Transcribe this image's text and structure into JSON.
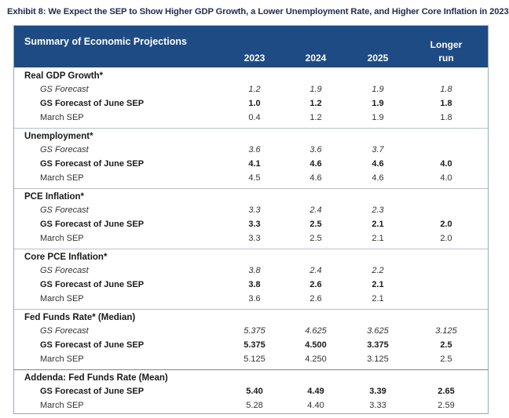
{
  "exhibit_title": "Exhibit 8: We Expect the SEP to Show Higher GDP Growth, a Lower Unemployment Rate, and Higher Core Inflation in 2023",
  "table": {
    "title": "Summary of Economic Projections",
    "columns": [
      "2023",
      "2024",
      "2025"
    ],
    "longer_run_label": [
      "Longer",
      "run"
    ],
    "sections": [
      {
        "name": "Real GDP Growth*",
        "rows": [
          {
            "label": "GS Forecast",
            "style": "italic",
            "values": [
              "1.2",
              "1.9",
              "1.9",
              "1.8"
            ]
          },
          {
            "label": "GS Forecast of June SEP",
            "style": "bold",
            "values": [
              "1.0",
              "1.2",
              "1.9",
              "1.8"
            ]
          },
          {
            "label": "March SEP",
            "style": "regular",
            "values": [
              "0.4",
              "1.2",
              "1.9",
              "1.8"
            ]
          }
        ]
      },
      {
        "name": "Unemployment*",
        "rows": [
          {
            "label": "GS Forecast",
            "style": "italic",
            "values": [
              "3.6",
              "3.6",
              "3.7",
              ""
            ]
          },
          {
            "label": "GS Forecast of June SEP",
            "style": "bold",
            "values": [
              "4.1",
              "4.6",
              "4.6",
              "4.0"
            ]
          },
          {
            "label": "March SEP",
            "style": "regular",
            "values": [
              "4.5",
              "4.6",
              "4.6",
              "4.0"
            ]
          }
        ]
      },
      {
        "name": "PCE Inflation*",
        "rows": [
          {
            "label": "GS Forecast",
            "style": "italic",
            "values": [
              "3.3",
              "2.4",
              "2.3",
              ""
            ]
          },
          {
            "label": "GS Forecast of June SEP",
            "style": "bold",
            "values": [
              "3.3",
              "2.5",
              "2.1",
              "2.0"
            ]
          },
          {
            "label": "March SEP",
            "style": "regular",
            "values": [
              "3.3",
              "2.5",
              "2.1",
              "2.0"
            ]
          }
        ]
      },
      {
        "name": "Core PCE Inflation*",
        "rows": [
          {
            "label": "GS Forecast",
            "style": "italic",
            "values": [
              "3.8",
              "2.4",
              "2.2",
              ""
            ]
          },
          {
            "label": "GS Forecast of June SEP",
            "style": "bold",
            "values": [
              "3.8",
              "2.6",
              "2.1",
              ""
            ]
          },
          {
            "label": "March SEP",
            "style": "regular",
            "values": [
              "3.6",
              "2.6",
              "2.1",
              ""
            ]
          }
        ]
      },
      {
        "name": "Fed Funds Rate* (Median)",
        "rows": [
          {
            "label": "GS Forecast",
            "style": "italic",
            "values": [
              "5.375",
              "4.625",
              "3.625",
              "3.125"
            ]
          },
          {
            "label": "GS Forecast of June SEP",
            "style": "bold",
            "values": [
              "5.375",
              "4.500",
              "3.375",
              "2.5"
            ]
          },
          {
            "label": "March SEP",
            "style": "regular",
            "values": [
              "5.125",
              "4.250",
              "3.125",
              "2.5"
            ]
          }
        ]
      },
      {
        "name": "Addenda: Fed Funds Rate (Mean)",
        "rows": [
          {
            "label": "GS Forecast of June SEP",
            "style": "bold",
            "values": [
              "5.40",
              "4.49",
              "3.39",
              "2.65"
            ]
          },
          {
            "label": "March SEP",
            "style": "regular",
            "values": [
              "5.28",
              "4.40",
              "3.33",
              "2.59"
            ]
          }
        ]
      }
    ]
  }
}
